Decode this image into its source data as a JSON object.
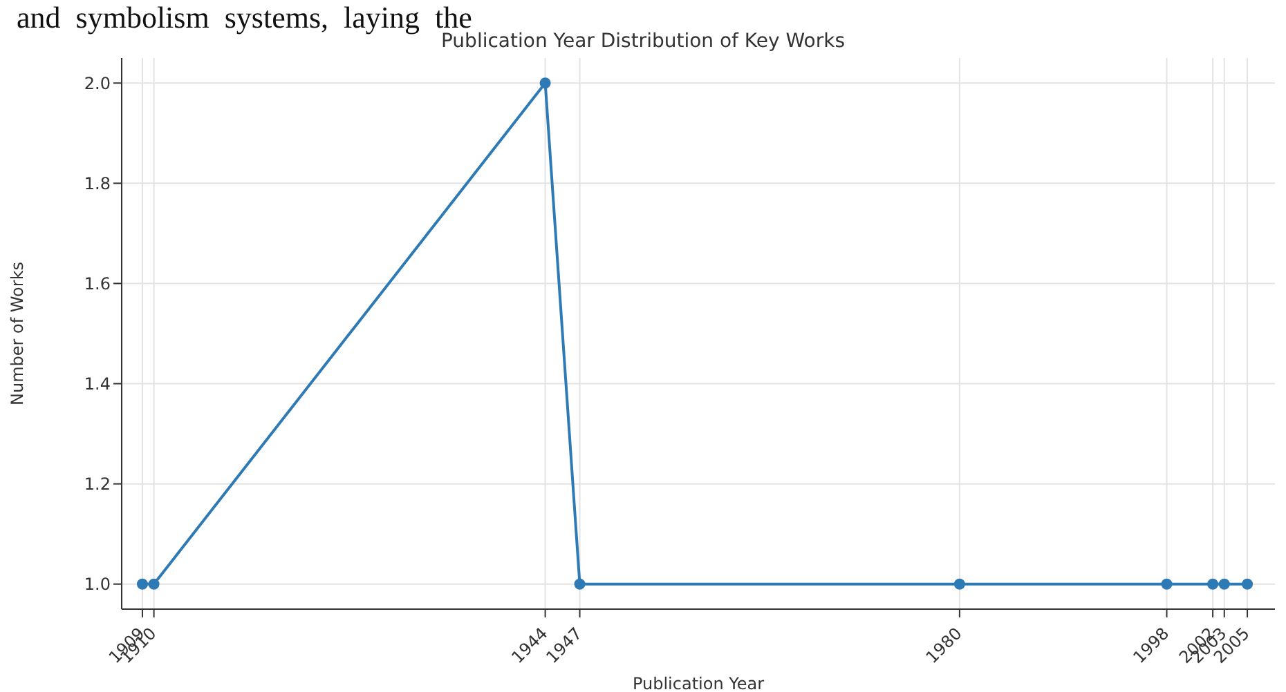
{
  "chart_data": {
    "type": "line",
    "title": "Publication Year Distribution of Key Works",
    "xlabel": "Publication Year",
    "ylabel": "Number of Works",
    "annotations": [
      "and  symbolism  systems,  laying  the"
    ],
    "x": [
      1909,
      1910,
      1944,
      1947,
      1980,
      1998,
      2002,
      2003,
      2005
    ],
    "series": [
      {
        "color": "#2e7ab5",
        "values": [
          1,
          1,
          2,
          1,
          1,
          1,
          1,
          1,
          1
        ]
      }
    ],
    "xlim": [
      1907.2,
      2007.4
    ],
    "xticks": [
      1909,
      1910,
      1944,
      1947,
      1980,
      1998,
      2002,
      2003,
      2005
    ],
    "ylim": [
      0.95,
      2.05
    ],
    "yticks": [
      {
        "value": 1.0,
        "label": "1.0"
      },
      {
        "value": 1.2,
        "label": "1.2"
      },
      {
        "value": 1.4,
        "label": "1.4"
      },
      {
        "value": 1.6,
        "label": "1.6"
      },
      {
        "value": 1.8,
        "label": "1.8"
      },
      {
        "value": 2.0,
        "label": "2.0"
      }
    ],
    "grid": true,
    "marker": "circle",
    "line_style": "solid",
    "legend": false
  }
}
